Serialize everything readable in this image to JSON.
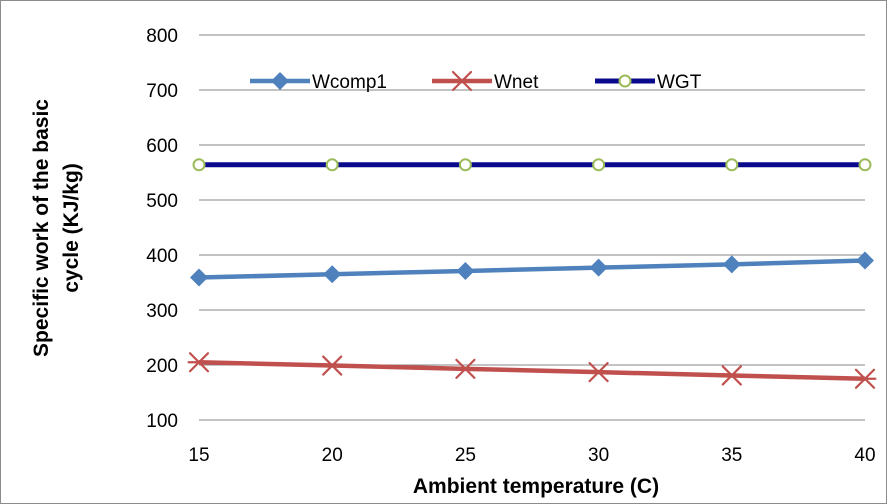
{
  "chart_data": {
    "type": "line",
    "title": "",
    "xlabel": "Ambient temperature (C)",
    "ylabel_lines": [
      "Specific work of the basic",
      "cycle  (KJ/kg)"
    ],
    "x": [
      15,
      20,
      25,
      30,
      35,
      40
    ],
    "xlim": [
      15,
      40
    ],
    "ylim": [
      100,
      800
    ],
    "yticks": [
      100,
      200,
      300,
      400,
      500,
      600,
      700,
      800
    ],
    "grid": "horizontal",
    "legend_position": "top-inside",
    "series": [
      {
        "name": "Wcomp1",
        "color": "#4f81bd",
        "marker": "diamond",
        "values": [
          359,
          365,
          371,
          377,
          383,
          390
        ]
      },
      {
        "name": "Wnet",
        "color": "#c0504d",
        "marker": "star",
        "values": [
          205,
          199,
          193,
          187,
          181,
          175
        ]
      },
      {
        "name": "WGT",
        "color": "#0a0a8c",
        "marker": "circle",
        "marker_color": "#9bbb59",
        "values": [
          564,
          564,
          564,
          564,
          564,
          564
        ]
      }
    ]
  }
}
